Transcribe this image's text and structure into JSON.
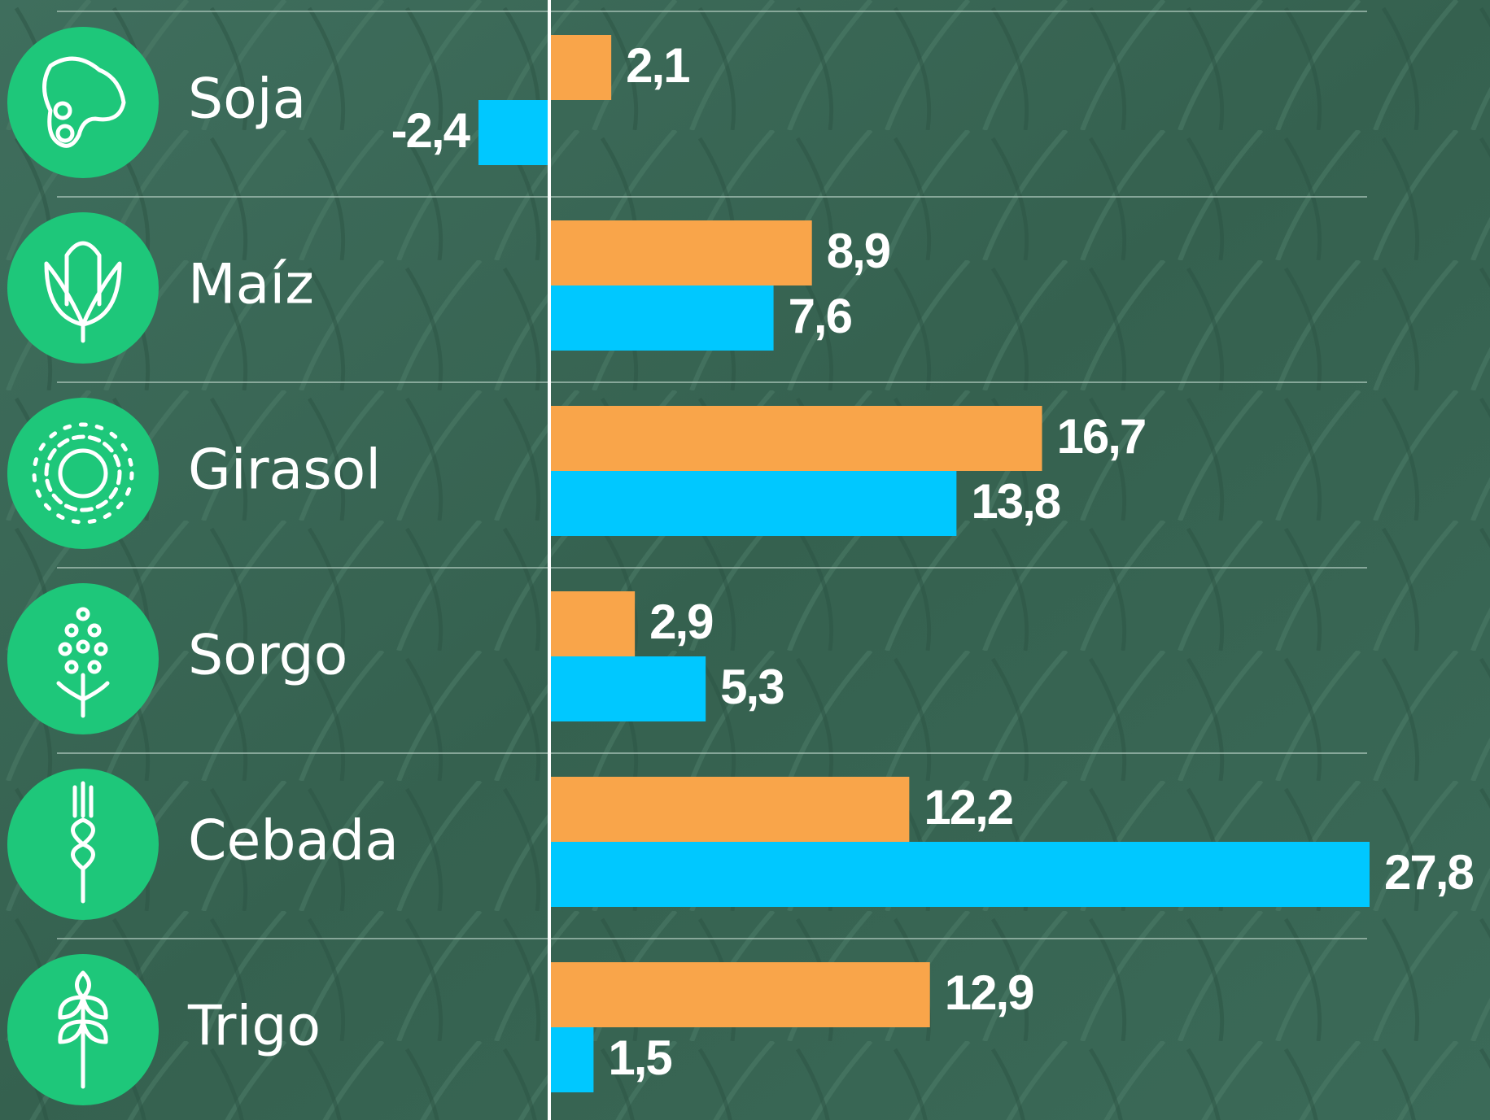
{
  "chart_data": {
    "type": "bar",
    "orientation": "horizontal",
    "categories": [
      "Soja",
      "Maíz",
      "Girasol",
      "Sorgo",
      "Cebada",
      "Trigo"
    ],
    "series": [
      {
        "color": "#f9a54a",
        "values": [
          2.1,
          8.9,
          16.7,
          2.9,
          12.2,
          12.9
        ],
        "value_labels": [
          "2,1",
          "8,9",
          "16,7",
          "2,9",
          "12,2",
          "12,9"
        ]
      },
      {
        "color": "#00c8ff",
        "values": [
          -2.4,
          7.6,
          13.8,
          5.3,
          27.8,
          1.5
        ],
        "value_labels": [
          "-2,4",
          "7,6",
          "13,8",
          "5,3",
          "27,8",
          "1,5"
        ]
      }
    ]
  }
}
